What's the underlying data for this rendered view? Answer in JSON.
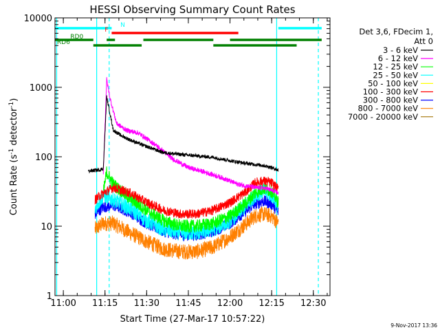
{
  "chart_data": {
    "type": "line",
    "title": "HESSI Observing Summary Count Rates",
    "xlabel": "Start Time (27-Mar-17 10:57:22)",
    "ylabel_main": "Count Rate (s",
    "ylabel_sup1": "-1",
    "ylabel_mid": " detector",
    "ylabel_sup2": "-1",
    "ylabel_end": ")",
    "yscale": "log",
    "xlim": [
      10.95,
      12.6
    ],
    "ylim": [
      1,
      10000
    ],
    "x_ticks": [
      {
        "v": 11.0,
        "label": "11:00"
      },
      {
        "v": 11.25,
        "label": "11:15"
      },
      {
        "v": 11.5,
        "label": "11:30"
      },
      {
        "v": 11.75,
        "label": "11:45"
      },
      {
        "v": 12.0,
        "label": "12:00"
      },
      {
        "v": 12.25,
        "label": "12:15"
      },
      {
        "v": 12.5,
        "label": "12:30"
      }
    ],
    "y_ticks": [
      {
        "v": 1,
        "label": "1"
      },
      {
        "v": 10,
        "label": "10"
      },
      {
        "v": 100,
        "label": "100"
      },
      {
        "v": 1000,
        "label": "1000"
      },
      {
        "v": 10000,
        "label": "10000"
      }
    ],
    "legend_header": [
      "Det 3,6, FDecim 1,",
      "Att 0"
    ],
    "legend_position": "right",
    "series": [
      {
        "name": "3 - 6 keV",
        "color": "#000000",
        "x": [
          11.15,
          11.22,
          11.24,
          11.26,
          11.28,
          11.3,
          11.35,
          11.4,
          11.5,
          11.6,
          11.7,
          11.8,
          11.9,
          12.0,
          12.1,
          12.2,
          12.25,
          12.29
        ],
        "y": [
          62,
          65,
          68,
          730,
          420,
          240,
          200,
          175,
          140,
          115,
          108,
          103,
          98,
          88,
          80,
          75,
          70,
          64
        ]
      },
      {
        "name": "6 - 12 keV",
        "color": "#ff00ff",
        "x": [
          11.24,
          11.26,
          11.28,
          11.32,
          11.38,
          11.45,
          11.55,
          11.65,
          11.75,
          11.85,
          11.95,
          12.05,
          12.15,
          12.22,
          12.29
        ],
        "y": [
          60,
          1300,
          700,
          300,
          240,
          220,
          150,
          95,
          70,
          60,
          50,
          40,
          36,
          35,
          30
        ]
      },
      {
        "name": "12 - 25 keV",
        "color": "#00ff00",
        "x": [
          11.24,
          11.26,
          11.3,
          11.4,
          11.5,
          11.6,
          11.7,
          11.8,
          11.9,
          12.0,
          12.1,
          12.15,
          12.2,
          12.25,
          12.29
        ],
        "y": [
          30,
          60,
          40,
          25,
          17,
          12,
          10,
          10,
          11,
          14,
          22,
          30,
          35,
          32,
          22
        ]
      },
      {
        "name": "25 - 50 keV",
        "color": "#00ffff",
        "x": [
          11.19,
          11.24,
          11.3,
          11.4,
          11.5,
          11.6,
          11.7,
          11.8,
          11.9,
          12.0,
          12.1,
          12.15,
          12.2,
          12.25,
          12.29
        ],
        "y": [
          18,
          28,
          24,
          18,
          12,
          9,
          8,
          8,
          9,
          12,
          20,
          28,
          32,
          28,
          20
        ]
      },
      {
        "name": "50 - 100 keV",
        "color": "#ffff00",
        "x": [
          11.19,
          11.29
        ],
        "y": [
          1,
          1
        ]
      },
      {
        "name": "100 - 300 keV",
        "color": "#ff0000",
        "x": [
          11.19,
          11.24,
          11.3,
          11.4,
          11.5,
          11.6,
          11.7,
          11.8,
          11.9,
          12.0,
          12.1,
          12.15,
          12.2,
          12.25,
          12.29
        ],
        "y": [
          24,
          30,
          36,
          30,
          22,
          17,
          15,
          15,
          17,
          22,
          32,
          42,
          45,
          42,
          34
        ]
      },
      {
        "name": "300 - 800 keV",
        "color": "#0000ff",
        "x": [
          11.19,
          11.24,
          11.3,
          11.4,
          11.5,
          11.6,
          11.7,
          11.8,
          11.9,
          12.0,
          12.1,
          12.15,
          12.2,
          12.25,
          12.29
        ],
        "y": [
          15,
          19,
          20,
          16,
          11,
          8.5,
          7.5,
          7.5,
          8.5,
          11,
          17,
          21,
          23,
          21,
          16
        ]
      },
      {
        "name": "800 - 7000 keV",
        "color": "#ff8000",
        "x": [
          11.19,
          11.24,
          11.3,
          11.4,
          11.5,
          11.6,
          11.7,
          11.8,
          11.9,
          12.0,
          12.1,
          12.15,
          12.2,
          12.25,
          12.29
        ],
        "y": [
          9,
          11,
          11,
          8,
          6,
          4.7,
          4.3,
          4.3,
          5,
          7,
          11,
          14,
          15,
          14,
          11
        ]
      },
      {
        "name": "7000 - 20000 keV",
        "color": "#a07000",
        "x": [
          11.19,
          11.29
        ],
        "y": [
          1,
          1
        ]
      }
    ],
    "flag_bars": [
      {
        "label": "N",
        "color": "#00ffff",
        "level": 0,
        "segments": [
          [
            10.95,
            11.29
          ],
          [
            12.29,
            12.55
          ]
        ]
      },
      {
        "label": "F",
        "color": "#ff0000",
        "level": 1,
        "segments": [
          [
            11.29,
            12.05
          ]
        ]
      },
      {
        "label": "RD0",
        "color": "#008000",
        "level": 2,
        "segments": [
          [
            10.95,
            11.18
          ],
          [
            11.26,
            11.31
          ],
          [
            11.48,
            11.9
          ],
          [
            12.0,
            12.55
          ]
        ]
      },
      {
        "label": "RD6",
        "color": "#008000",
        "level": 3,
        "segments": [
          [
            11.18,
            11.47
          ],
          [
            11.9,
            12.4
          ]
        ]
      }
    ],
    "vlines": [
      {
        "x": 10.96,
        "color": "#00ffff",
        "style": "solid"
      },
      {
        "x": 11.2,
        "color": "#00ffff",
        "style": "solid"
      },
      {
        "x": 11.275,
        "color": "#00ffff",
        "style": "dashed"
      },
      {
        "x": 12.28,
        "color": "#00ffff",
        "style": "solid"
      },
      {
        "x": 12.53,
        "color": "#00ffff",
        "style": "dashed"
      }
    ],
    "footer_date": "9-Nov-2017 13:36"
  }
}
